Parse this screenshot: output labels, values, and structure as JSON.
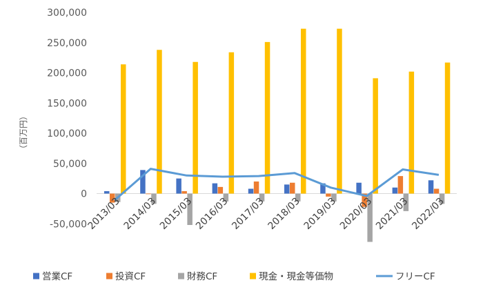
{
  "chart_data": {
    "type": "bar",
    "ylabel": "（百万円）",
    "ylim": [
      -100000,
      300000
    ],
    "yticks": [
      -50000,
      0,
      50000,
      100000,
      150000,
      200000,
      250000,
      300000
    ],
    "ytick_labels": [
      "-50,000",
      "0",
      "50,000",
      "100,000",
      "150,000",
      "200,000",
      "250,000",
      "300,000"
    ],
    "categories": [
      "2013/03",
      "2014/03",
      "2015/03",
      "2016/03",
      "2017/03",
      "2018/03",
      "2019/03",
      "2020/03",
      "2021/03",
      "2022/03"
    ],
    "series": [
      {
        "name": "営業CF",
        "kind": "bar",
        "color": "#4472C4",
        "values": [
          4000,
          39000,
          25000,
          17000,
          8000,
          15000,
          17000,
          18000,
          10000,
          22000
        ]
      },
      {
        "name": "投資CF",
        "kind": "bar",
        "color": "#ED7D31",
        "values": [
          -15000,
          0,
          4000,
          11000,
          20000,
          18000,
          -5000,
          -22000,
          29000,
          8000
        ]
      },
      {
        "name": "財務CF",
        "kind": "bar",
        "color": "#A5A5A5",
        "values": [
          -14000,
          -17000,
          -52000,
          -13000,
          -13000,
          -13000,
          -13000,
          -80000,
          -29000,
          -17000
        ]
      },
      {
        "name": "現金・現金等価物",
        "kind": "bar",
        "color": "#FFC000",
        "values": [
          214000,
          238000,
          218000,
          234000,
          251000,
          273000,
          273000,
          191000,
          202000,
          217000
        ]
      },
      {
        "name": "フリーCF",
        "kind": "line",
        "color": "#5B9BD5",
        "values": [
          -11000,
          41000,
          30000,
          28000,
          29000,
          34000,
          10000,
          -4000,
          40000,
          31000
        ]
      }
    ],
    "legend_position": "bottom",
    "grid": false
  }
}
